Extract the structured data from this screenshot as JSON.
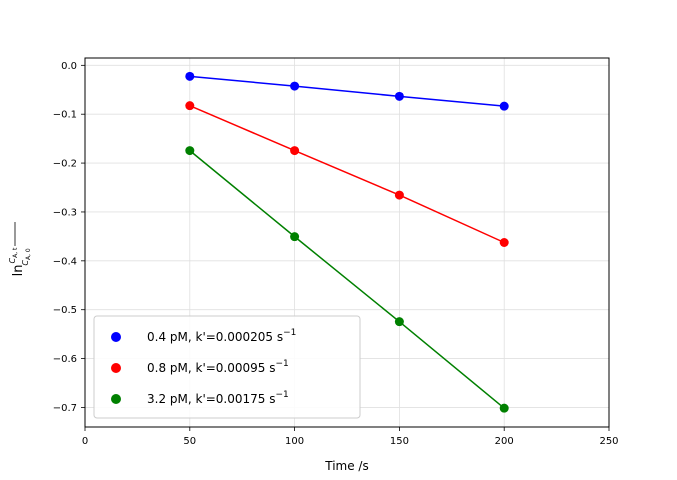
{
  "chart_data": {
    "type": "scatter",
    "xlabel": "Time /s",
    "ylabel": "ln(C_A,t / C_A,0)",
    "xlim": [
      0,
      250
    ],
    "ylim": [
      -0.74,
      0.015
    ],
    "xticks": [
      0,
      50,
      100,
      150,
      200,
      250
    ],
    "yticks": [
      0.0,
      -0.1,
      -0.2,
      -0.3,
      -0.4,
      -0.5,
      -0.6,
      -0.7
    ],
    "xtick_labels": [
      "0",
      "50",
      "100",
      "150",
      "200",
      "250"
    ],
    "ytick_labels": [
      "0.0",
      "−0.1",
      "−0.2",
      "−0.3",
      "−0.4",
      "−0.5",
      "−0.6",
      "−0.7"
    ],
    "grid": true,
    "legend_position": "bottom-left",
    "series": [
      {
        "name": "0.4 pM, k'=0.000205 s⁻¹",
        "legend_main": "0.4 pM, k'=0.000205 s",
        "legend_sup": "−1",
        "color": "#0000ff",
        "x": [
          50,
          100,
          150,
          200
        ],
        "y": [
          -0.0225,
          -0.0425,
          -0.0635,
          -0.0835
        ]
      },
      {
        "name": "0.8 pM, k'=0.00095 s⁻¹",
        "legend_main": "0.8 pM, k'=0.00095 s",
        "legend_sup": "−1",
        "color": "#ff0000",
        "x": [
          50,
          100,
          150,
          200
        ],
        "y": [
          -0.0825,
          -0.1745,
          -0.2655,
          -0.3625
        ]
      },
      {
        "name": "3.2 pM, k'=0.00175 s⁻¹",
        "legend_main": "3.2 pM, k'=0.00175 s",
        "legend_sup": "−1",
        "color": "#008000",
        "x": [
          50,
          100,
          150,
          200
        ],
        "y": [
          -0.1745,
          -0.3505,
          -0.5245,
          -0.7015
        ]
      }
    ]
  }
}
